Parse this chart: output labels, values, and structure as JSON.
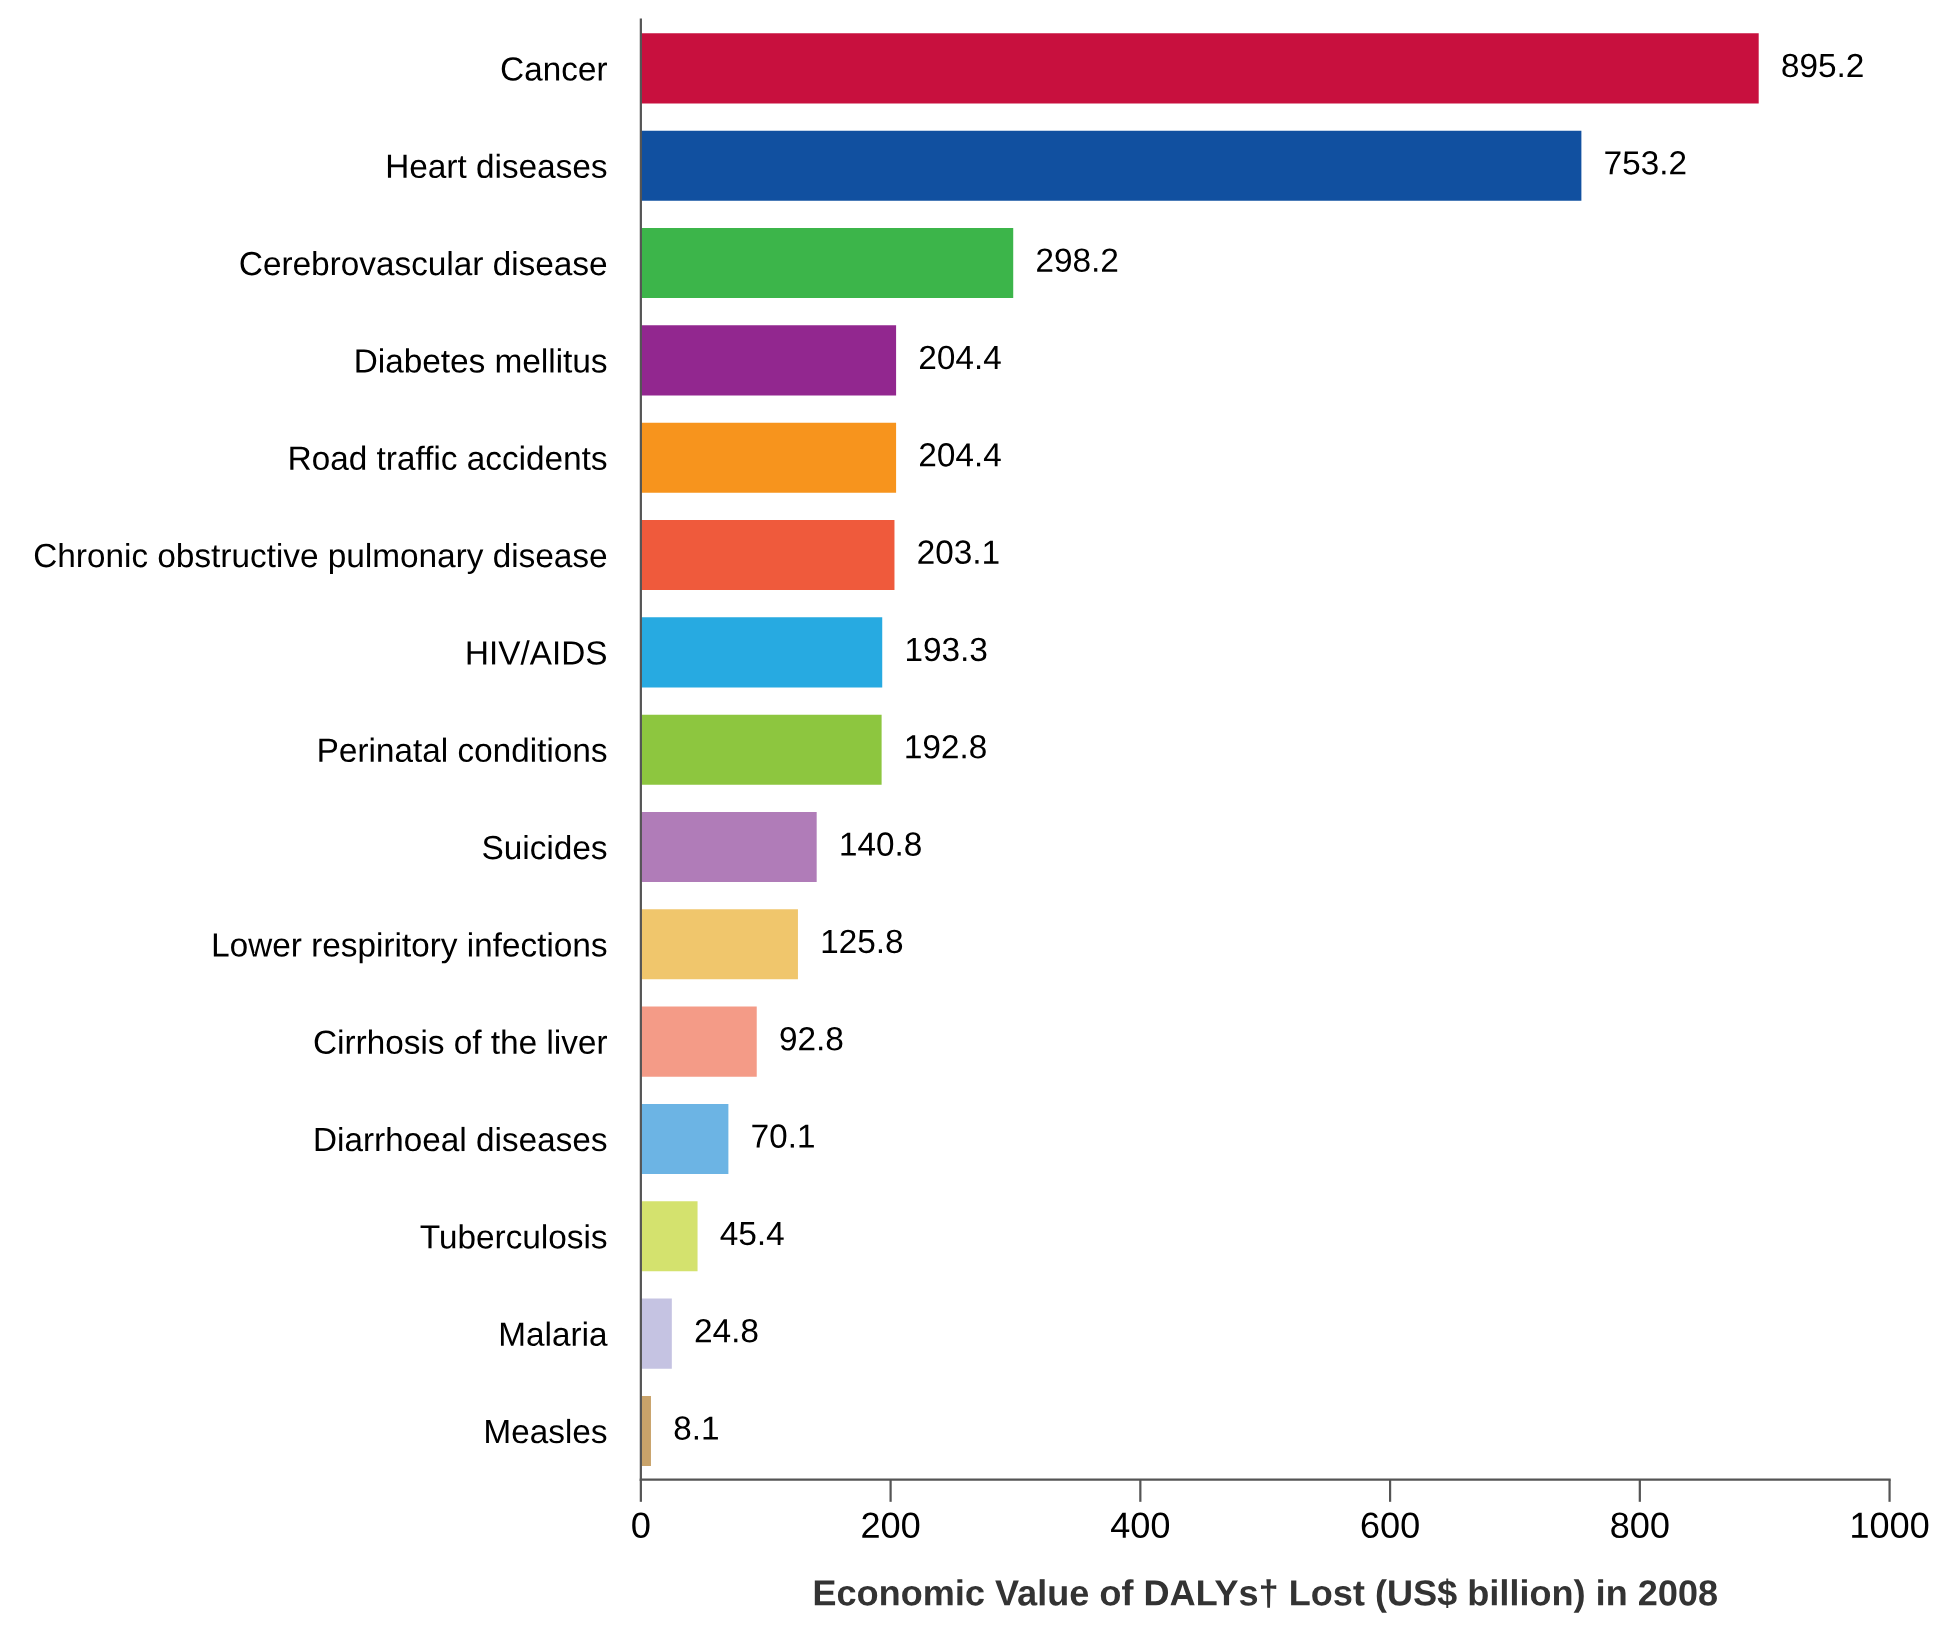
{
  "chart_data": {
    "type": "bar",
    "orientation": "horizontal",
    "xlabel": "Economic Value of DALYs† Lost (US$ billion) in 2008",
    "categories": [
      "Cancer",
      "Heart diseases",
      "Cerebrovascular disease",
      "Diabetes mellitus",
      "Road traffic accidents",
      "Chronic obstructive pulmonary disease",
      "HIV/AIDS",
      "Perinatal conditions",
      "Suicides",
      "Lower respiritory infections",
      "Cirrhosis of the liver",
      "Diarrhoeal diseases",
      "Tuberculosis",
      "Malaria",
      "Measles"
    ],
    "values": [
      895.2,
      753.2,
      298.2,
      204.4,
      204.4,
      203.1,
      193.3,
      192.8,
      140.8,
      125.8,
      92.8,
      70.1,
      45.4,
      24.8,
      8.1
    ],
    "colors": [
      "#c8103e",
      "#1150a0",
      "#3cb54a",
      "#92278f",
      "#f7941d",
      "#ef5a3c",
      "#27aae1",
      "#8dc63f",
      "#b07cb8",
      "#f0c66c",
      "#f49b87",
      "#6cb4e4",
      "#d4e26e",
      "#c5c3e2",
      "#c9a36a"
    ],
    "xlim": [
      0,
      1000
    ],
    "xticks": [
      0,
      200,
      400,
      600,
      800,
      1000
    ],
    "data_labels": true,
    "grid": false,
    "legend": false
  }
}
